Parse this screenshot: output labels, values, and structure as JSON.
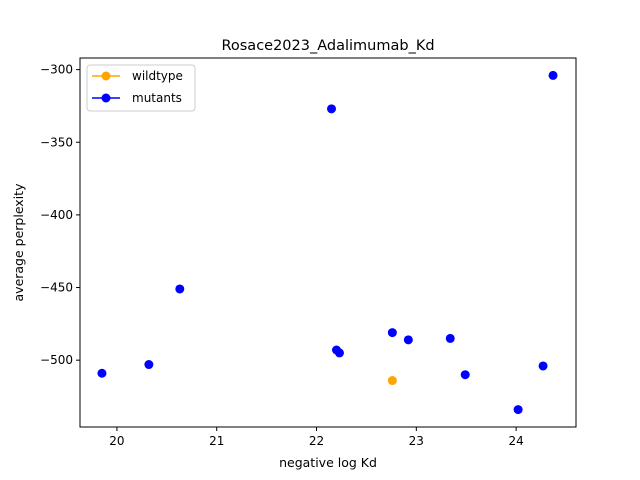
{
  "chart_data": {
    "type": "scatter",
    "title": "Rosace2023_Adalimumab_Kd",
    "xlabel": "negative log Kd",
    "ylabel": "average perplexity",
    "xlim": [
      19.63,
      24.6
    ],
    "ylim": [
      -546,
      -292
    ],
    "xticks": [
      20,
      21,
      22,
      23,
      24
    ],
    "yticks": [
      -300,
      -350,
      -400,
      -450,
      -500
    ],
    "grid": false,
    "legend_position": "top-left",
    "series": [
      {
        "name": "wildtype",
        "color": "#FFA500",
        "points": [
          {
            "x": 22.76,
            "y": -514
          }
        ]
      },
      {
        "name": "mutants",
        "color": "#0000FF",
        "points": [
          {
            "x": 19.85,
            "y": -509
          },
          {
            "x": 20.32,
            "y": -503
          },
          {
            "x": 20.63,
            "y": -451
          },
          {
            "x": 22.15,
            "y": -327
          },
          {
            "x": 22.2,
            "y": -493
          },
          {
            "x": 22.23,
            "y": -495
          },
          {
            "x": 22.76,
            "y": -481
          },
          {
            "x": 22.92,
            "y": -486
          },
          {
            "x": 23.34,
            "y": -485
          },
          {
            "x": 23.49,
            "y": -510
          },
          {
            "x": 24.02,
            "y": -534
          },
          {
            "x": 24.27,
            "y": -504
          },
          {
            "x": 24.37,
            "y": -304
          }
        ]
      }
    ]
  }
}
